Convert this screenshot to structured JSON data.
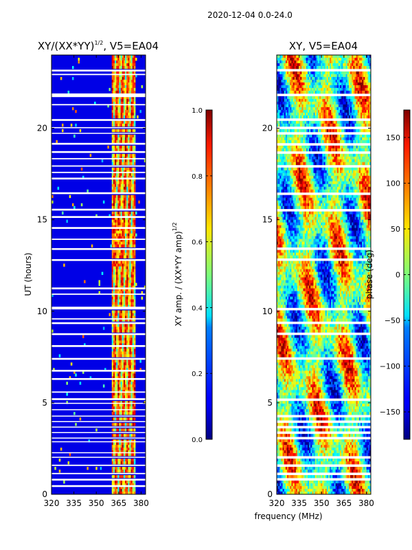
{
  "suptitle": "2020-12-04 0.0-24.0",
  "shared_xlabel": "frequency (MHz)",
  "chart_data": [
    {
      "type": "heatmap",
      "title_main": "XY/(XX*YY)",
      "title_exp": "1/2",
      "title_suffix": ", V5=EA04",
      "ylabel": "UT (hours)",
      "xlim": [
        320,
        383
      ],
      "ylim": [
        0,
        24
      ],
      "xticks": [
        320,
        335,
        350,
        365,
        380
      ],
      "yticks": [
        0,
        5,
        10,
        15,
        20
      ],
      "colormap": "jet",
      "colorbar": {
        "label_main": "XY amp. / (XX*YY amp)",
        "label_exp": "1/2",
        "range": [
          0.0,
          1.0
        ],
        "ticks": [
          0.0,
          0.2,
          0.4,
          0.6,
          0.8,
          1.0
        ],
        "tick_labels": [
          "0.0",
          "0.2",
          "0.4",
          "0.6",
          "0.8",
          "1.0"
        ]
      }
    },
    {
      "type": "heatmap",
      "title_main": "XY",
      "title_suffix": ", V5=EA04",
      "ylabel": "",
      "xlim": [
        320,
        383
      ],
      "ylim": [
        0,
        24
      ],
      "xticks": [
        320,
        335,
        350,
        365,
        380
      ],
      "yticks": [
        0,
        5,
        10,
        15,
        20
      ],
      "colormap": "jet",
      "colorbar": {
        "label_main": "phase (deg)",
        "range": [
          -180,
          180
        ],
        "ticks": [
          -150,
          -100,
          -50,
          0,
          50,
          100,
          150
        ],
        "tick_labels": [
          "−150",
          "−100",
          "−50",
          "0",
          "50",
          "100",
          "150"
        ]
      }
    }
  ]
}
